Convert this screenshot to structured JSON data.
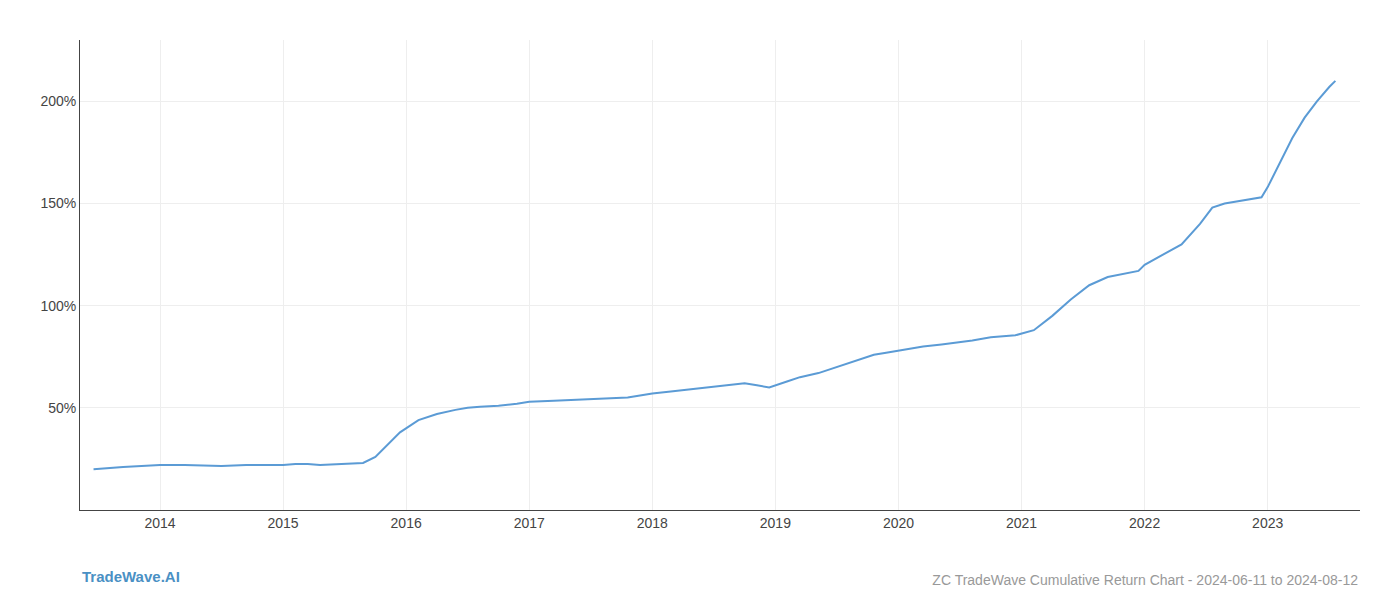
{
  "chart_data": {
    "type": "line",
    "title": "ZC TradeWave Cumulative Return Chart - 2024-06-11 to 2024-08-12",
    "annotations": [
      "TradeWave.AI"
    ],
    "color": "#5b9bd5",
    "x": [
      2013.46,
      2013.55,
      2013.7,
      2013.85,
      2014.0,
      2014.2,
      2014.5,
      2014.7,
      2014.9,
      2015.0,
      2015.1,
      2015.2,
      2015.3,
      2015.5,
      2015.65,
      2015.75,
      2015.85,
      2015.95,
      2016.1,
      2016.25,
      2016.4,
      2016.5,
      2016.6,
      2016.75,
      2016.9,
      2017.0,
      2017.2,
      2017.4,
      2017.6,
      2017.8,
      2017.9,
      2018.0,
      2018.15,
      2018.3,
      2018.45,
      2018.6,
      2018.75,
      2018.85,
      2018.95,
      2019.1,
      2019.2,
      2019.35,
      2019.5,
      2019.65,
      2019.8,
      2019.9,
      2020.0,
      2020.1,
      2020.2,
      2020.35,
      2020.5,
      2020.6,
      2020.75,
      2020.85,
      2020.95,
      2021.1,
      2021.25,
      2021.4,
      2021.55,
      2021.7,
      2021.85,
      2021.95,
      2022.0,
      2022.15,
      2022.3,
      2022.45,
      2022.55,
      2022.65,
      2022.75,
      2022.85,
      2022.95,
      2023.0,
      2023.1,
      2023.2,
      2023.3,
      2023.4,
      2023.5,
      2023.55
    ],
    "values": [
      20,
      20.5,
      21,
      21.5,
      22,
      22,
      21.5,
      22,
      22,
      22,
      22.5,
      22.5,
      22,
      22.5,
      23,
      26,
      32,
      38,
      44,
      47,
      49,
      50,
      50.5,
      51,
      52,
      53,
      53.5,
      54,
      54.5,
      55,
      56,
      57,
      58,
      59,
      60,
      61,
      62,
      61,
      60,
      63,
      65,
      67,
      70,
      73,
      76,
      77,
      78,
      79,
      80,
      81,
      82,
      83,
      84.5,
      85,
      85.5,
      88,
      95,
      103,
      110,
      114,
      116,
      117,
      120,
      125,
      130,
      140,
      148,
      150,
      151,
      152,
      153,
      158,
      170,
      182,
      192,
      200,
      207,
      210
    ],
    "xlim": [
      2013.35,
      2023.75
    ],
    "ylim": [
      0,
      230
    ],
    "xticks": [
      2014,
      2015,
      2016,
      2017,
      2018,
      2019,
      2020,
      2021,
      2022,
      2023
    ],
    "yticks": [
      {
        "value": 50,
        "label": "50%"
      },
      {
        "value": 100,
        "label": "100%"
      },
      {
        "value": 150,
        "label": "150%"
      },
      {
        "value": 200,
        "label": "200%"
      }
    ],
    "grid": true
  }
}
